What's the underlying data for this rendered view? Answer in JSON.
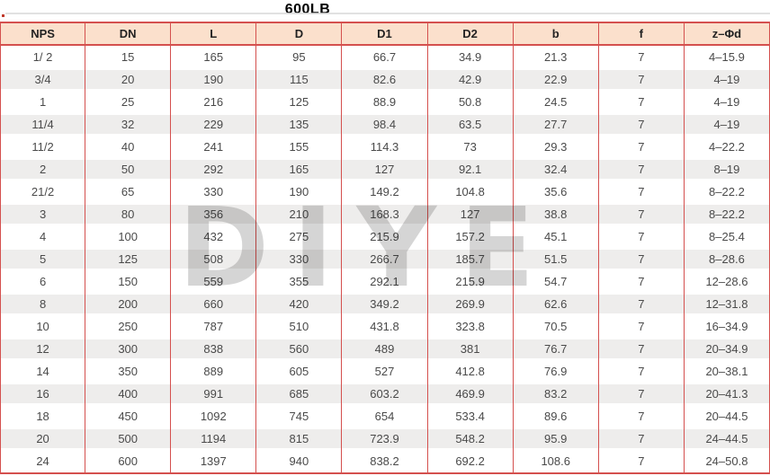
{
  "page": {
    "title": "600LB"
  },
  "watermark": {
    "text": "DIYE"
  },
  "colors": {
    "border_red": "#d4504e",
    "header_bg": "#fbe0cc",
    "stripe_gray": "#eeedec",
    "cell_text": "#4a4a4a"
  },
  "chart_data": {
    "type": "table",
    "title": "600LB",
    "columns": [
      "NPS",
      "DN",
      "L",
      "D",
      "D1",
      "D2",
      "b",
      "f",
      "z–Φd"
    ],
    "rows": [
      [
        "1/ 2",
        "15",
        "165",
        "95",
        "66.7",
        "34.9",
        "21.3",
        "7",
        "4–15.9"
      ],
      [
        "3/4",
        "20",
        "190",
        "115",
        "82.6",
        "42.9",
        "22.9",
        "7",
        "4–19"
      ],
      [
        "1",
        "25",
        "216",
        "125",
        "88.9",
        "50.8",
        "24.5",
        "7",
        "4–19"
      ],
      [
        "11/4",
        "32",
        "229",
        "135",
        "98.4",
        "63.5",
        "27.7",
        "7",
        "4–19"
      ],
      [
        "11/2",
        "40",
        "241",
        "155",
        "114.3",
        "73",
        "29.3",
        "7",
        "4–22.2"
      ],
      [
        "2",
        "50",
        "292",
        "165",
        "127",
        "92.1",
        "32.4",
        "7",
        "8–19"
      ],
      [
        "21/2",
        "65",
        "330",
        "190",
        "149.2",
        "104.8",
        "35.6",
        "7",
        "8–22.2"
      ],
      [
        "3",
        "80",
        "356",
        "210",
        "168.3",
        "127",
        "38.8",
        "7",
        "8–22.2"
      ],
      [
        "4",
        "100",
        "432",
        "275",
        "215.9",
        "157.2",
        "45.1",
        "7",
        "8–25.4"
      ],
      [
        "5",
        "125",
        "508",
        "330",
        "266.7",
        "185.7",
        "51.5",
        "7",
        "8–28.6"
      ],
      [
        "6",
        "150",
        "559",
        "355",
        "292.1",
        "215.9",
        "54.7",
        "7",
        "12–28.6"
      ],
      [
        "8",
        "200",
        "660",
        "420",
        "349.2",
        "269.9",
        "62.6",
        "7",
        "12–31.8"
      ],
      [
        "10",
        "250",
        "787",
        "510",
        "431.8",
        "323.8",
        "70.5",
        "7",
        "16–34.9"
      ],
      [
        "12",
        "300",
        "838",
        "560",
        "489",
        "381",
        "76.7",
        "7",
        "20–34.9"
      ],
      [
        "14",
        "350",
        "889",
        "605",
        "527",
        "412.8",
        "76.9",
        "7",
        "20–38.1"
      ],
      [
        "16",
        "400",
        "991",
        "685",
        "603.2",
        "469.9",
        "83.2",
        "7",
        "20–41.3"
      ],
      [
        "18",
        "450",
        "1092",
        "745",
        "654",
        "533.4",
        "89.6",
        "7",
        "20–44.5"
      ],
      [
        "20",
        "500",
        "1194",
        "815",
        "723.9",
        "548.2",
        "95.9",
        "7",
        "24–44.5"
      ],
      [
        "24",
        "600",
        "1397",
        "940",
        "838.2",
        "692.2",
        "108.6",
        "7",
        "24–50.8"
      ]
    ]
  }
}
